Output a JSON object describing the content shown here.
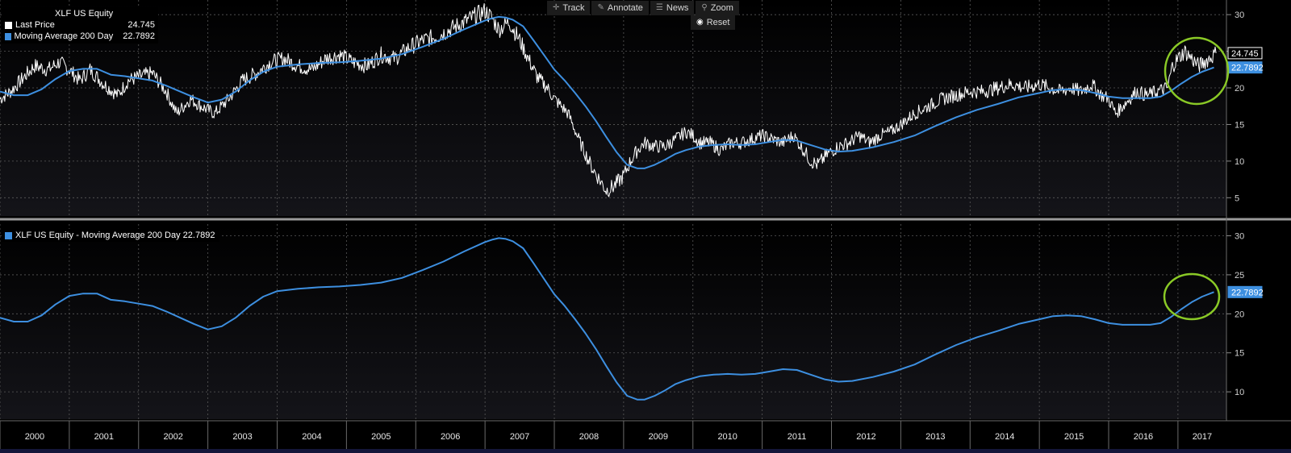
{
  "toolbar": {
    "track": "Track",
    "annotate": "Annotate",
    "news": "News",
    "zoom": "Zoom",
    "reset": "Reset"
  },
  "legend_top": {
    "title": "XLF US Equity",
    "items": [
      {
        "label": "Last Price",
        "value": "24.745",
        "color": "#ffffff"
      },
      {
        "label": "Moving Average 200 Day",
        "value": "22.7892",
        "color": "#3d8fe0"
      }
    ]
  },
  "legend_bottom": {
    "label": "XLF US Equity - Moving Average 200 Day 22.7892",
    "color": "#3d8fe0"
  },
  "colors": {
    "price": "#ffffff",
    "ma": "#3d8fe0",
    "highlight": "#8ac926",
    "grid": "#5a5a5a",
    "background": "#000000"
  },
  "chart_data": [
    {
      "type": "line",
      "panel": "top",
      "x_labels": [
        "2000",
        "2001",
        "2002",
        "2003",
        "2004",
        "2005",
        "2006",
        "2007",
        "2008",
        "2009",
        "2010",
        "2011",
        "2012",
        "2013",
        "2014",
        "2015",
        "2016",
        "2017"
      ],
      "y_ticks": [
        5,
        10,
        15,
        20,
        25,
        30
      ],
      "ylim": [
        2.5,
        32
      ],
      "grid": true,
      "last_value_labels": [
        "24.745",
        "22.7892"
      ],
      "series": [
        {
          "name": "Last Price",
          "x": [
            2000.0,
            2000.15,
            2000.3,
            2000.5,
            2000.7,
            2000.85,
            2001.0,
            2001.15,
            2001.3,
            2001.5,
            2001.7,
            2001.85,
            2002.0,
            2002.2,
            2002.4,
            2002.55,
            2002.75,
            2002.9,
            2003.1,
            2003.3,
            2003.5,
            2003.7,
            2003.9,
            2004.1,
            2004.3,
            2004.5,
            2004.7,
            2004.9,
            2005.1,
            2005.3,
            2005.5,
            2005.7,
            2005.9,
            2006.1,
            2006.3,
            2006.5,
            2006.7,
            2006.9,
            2007.0,
            2007.1,
            2007.2,
            2007.35,
            2007.5,
            2007.6,
            2007.75,
            2007.9,
            2008.0,
            2008.1,
            2008.2,
            2008.35,
            2008.45,
            2008.55,
            2008.65,
            2008.75,
            2008.85,
            2009.0,
            2009.1,
            2009.2,
            2009.3,
            2009.45,
            2009.6,
            2009.75,
            2009.9,
            2010.0,
            2010.1,
            2010.25,
            2010.4,
            2010.55,
            2010.7,
            2010.85,
            2011.0,
            2011.15,
            2011.3,
            2011.45,
            2011.6,
            2011.7,
            2011.8,
            2011.95,
            2012.1,
            2012.25,
            2012.4,
            2012.55,
            2012.7,
            2012.85,
            2013.0,
            2013.2,
            2013.4,
            2013.6,
            2013.8,
            2014.0,
            2014.2,
            2014.4,
            2014.6,
            2014.8,
            2015.0,
            2015.15,
            2015.3,
            2015.45,
            2015.6,
            2015.75,
            2015.9,
            2016.0,
            2016.1,
            2016.25,
            2016.4,
            2016.55,
            2016.7,
            2016.85,
            2016.92,
            2017.0,
            2017.1,
            2017.2,
            2017.3,
            2017.45,
            2017.55
          ],
          "values": [
            18.5,
            19.5,
            21.0,
            23.0,
            22.5,
            23.5,
            22.5,
            21.0,
            22.5,
            20.5,
            19.0,
            21.0,
            21.5,
            22.0,
            19.5,
            16.5,
            18.5,
            17.5,
            16.5,
            18.5,
            21.0,
            22.0,
            23.5,
            24.0,
            23.0,
            22.5,
            24.0,
            24.5,
            23.5,
            23.0,
            24.5,
            24.0,
            25.5,
            26.5,
            27.0,
            28.0,
            29.0,
            30.0,
            30.5,
            29.5,
            28.0,
            29.0,
            26.5,
            24.5,
            21.5,
            20.0,
            18.5,
            17.5,
            16.5,
            13.0,
            11.0,
            9.0,
            7.5,
            6.0,
            6.5,
            8.0,
            10.0,
            11.5,
            12.5,
            12.0,
            12.0,
            13.0,
            14.0,
            13.5,
            12.5,
            12.5,
            11.5,
            12.5,
            12.5,
            13.0,
            13.5,
            13.0,
            12.5,
            13.5,
            11.5,
            10.0,
            9.5,
            11.0,
            12.0,
            12.5,
            13.5,
            12.5,
            13.5,
            14.0,
            15.0,
            16.5,
            17.5,
            18.5,
            19.0,
            19.5,
            19.5,
            20.0,
            20.5,
            20.0,
            20.5,
            20.0,
            19.5,
            20.0,
            19.5,
            20.5,
            19.0,
            18.5,
            16.5,
            18.0,
            19.5,
            19.0,
            19.5,
            20.0,
            23.0,
            24.0,
            25.0,
            24.0,
            23.0,
            24.0,
            24.745
          ]
        },
        {
          "name": "Moving Average 200 Day",
          "x": [
            2000.0,
            2000.2,
            2000.4,
            2000.6,
            2000.8,
            2001.0,
            2001.2,
            2001.4,
            2001.6,
            2001.8,
            2002.0,
            2002.2,
            2002.4,
            2002.6,
            2002.8,
            2003.0,
            2003.2,
            2003.4,
            2003.6,
            2003.8,
            2004.0,
            2004.3,
            2004.6,
            2004.9,
            2005.2,
            2005.5,
            2005.8,
            2006.1,
            2006.4,
            2006.7,
            2007.0,
            2007.1,
            2007.2,
            2007.3,
            2007.4,
            2007.55,
            2007.7,
            2007.85,
            2008.0,
            2008.15,
            2008.3,
            2008.45,
            2008.6,
            2008.75,
            2008.9,
            2009.05,
            2009.2,
            2009.3,
            2009.45,
            2009.6,
            2009.75,
            2009.9,
            2010.1,
            2010.3,
            2010.5,
            2010.7,
            2010.9,
            2011.1,
            2011.3,
            2011.5,
            2011.7,
            2011.9,
            2012.1,
            2012.3,
            2012.6,
            2012.9,
            2013.2,
            2013.5,
            2013.8,
            2014.1,
            2014.4,
            2014.7,
            2015.0,
            2015.2,
            2015.4,
            2015.6,
            2015.8,
            2016.0,
            2016.2,
            2016.4,
            2016.6,
            2016.75,
            2016.9,
            2017.05,
            2017.2,
            2017.35,
            2017.52
          ],
          "values": [
            19.5,
            19.0,
            19.0,
            19.8,
            21.2,
            22.3,
            22.6,
            22.6,
            21.8,
            21.6,
            21.3,
            21.0,
            20.3,
            19.5,
            18.7,
            18.0,
            18.4,
            19.5,
            21.0,
            22.2,
            22.9,
            23.2,
            23.4,
            23.5,
            23.7,
            24.0,
            24.6,
            25.6,
            26.7,
            28.0,
            29.2,
            29.5,
            29.7,
            29.6,
            29.3,
            28.4,
            26.5,
            24.5,
            22.5,
            21.0,
            19.3,
            17.5,
            15.5,
            13.3,
            11.2,
            9.5,
            9.0,
            9.0,
            9.5,
            10.2,
            11.0,
            11.5,
            12.0,
            12.2,
            12.3,
            12.2,
            12.3,
            12.6,
            12.9,
            12.8,
            12.2,
            11.6,
            11.3,
            11.4,
            11.9,
            12.6,
            13.5,
            14.8,
            16.0,
            17.0,
            17.8,
            18.7,
            19.3,
            19.7,
            19.8,
            19.7,
            19.3,
            18.8,
            18.6,
            18.6,
            18.6,
            18.8,
            19.6,
            20.6,
            21.5,
            22.2,
            22.7892
          ]
        }
      ]
    },
    {
      "type": "line",
      "panel": "bottom",
      "x_labels": [
        "2000",
        "2001",
        "2002",
        "2003",
        "2004",
        "2005",
        "2006",
        "2007",
        "2008",
        "2009",
        "2010",
        "2011",
        "2012",
        "2013",
        "2014",
        "2015",
        "2016",
        "2017"
      ],
      "y_ticks": [
        10,
        15,
        20,
        25,
        30
      ],
      "ylim": [
        6.5,
        31.5
      ],
      "grid": true,
      "last_value_labels": [
        "22.7892"
      ],
      "series_ref": "Moving Average 200 Day"
    }
  ]
}
